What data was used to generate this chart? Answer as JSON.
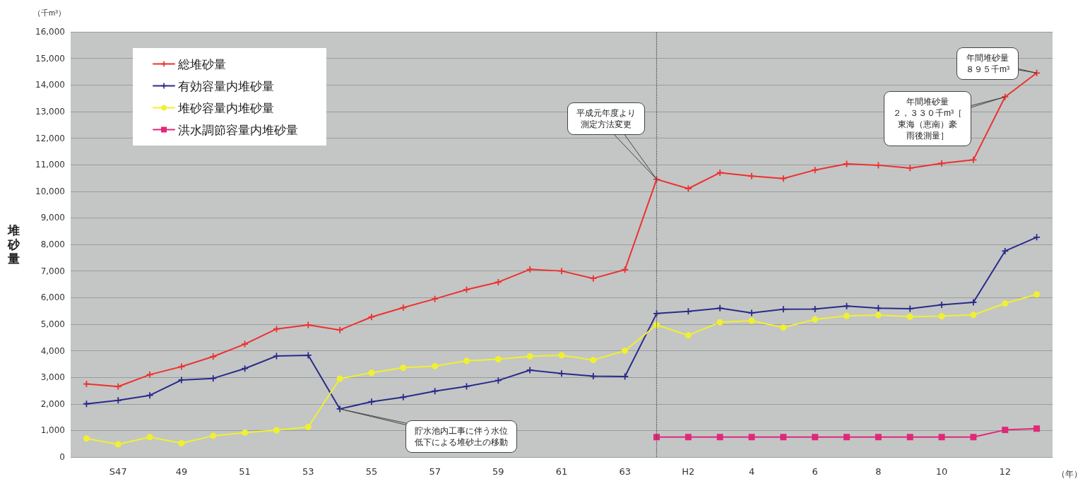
{
  "chart_data": {
    "type": "line",
    "ylabel": "堆砂量",
    "xlabel": "（年）",
    "categories": [
      null,
      "S47",
      null,
      "49",
      null,
      "51",
      null,
      "53",
      null,
      "55",
      null,
      "57",
      null,
      "59",
      null,
      "61",
      null,
      "63",
      null,
      "H2",
      null,
      "4",
      null,
      "6",
      null,
      "8",
      null,
      "10",
      null,
      "12",
      null
    ],
    "series": [
      {
        "name": "総堆砂量",
        "color": "#ee3030",
        "marker": "cross",
        "values": [
          2750,
          2650,
          3100,
          3400,
          3780,
          4250,
          4820,
          4970,
          4780,
          5270,
          5620,
          5950,
          6300,
          6580,
          7060,
          7000,
          6720,
          7050,
          10450,
          10100,
          10700,
          10570,
          10480,
          10800,
          11030,
          10980,
          10870,
          11050,
          11180,
          13550,
          14450
        ]
      },
      {
        "name": "有効容量内堆砂量",
        "color": "#2a2a8a",
        "marker": "cross",
        "values": [
          2000,
          2130,
          2320,
          2900,
          2960,
          3330,
          3800,
          3830,
          1810,
          2080,
          2250,
          2480,
          2660,
          2880,
          3270,
          3140,
          3040,
          3030,
          5400,
          5480,
          5600,
          5420,
          5560,
          5570,
          5680,
          5600,
          5580,
          5730,
          5820,
          7750,
          8270
        ]
      },
      {
        "name": "堆砂容量内堆砂量",
        "color": "#f0f030",
        "marker": "circle",
        "values": [
          700,
          480,
          750,
          520,
          800,
          920,
          1010,
          1130,
          2950,
          3170,
          3360,
          3420,
          3620,
          3680,
          3790,
          3830,
          3650,
          4000,
          4970,
          4580,
          5070,
          5130,
          4870,
          5180,
          5310,
          5340,
          5280,
          5300,
          5350,
          5780,
          6120
        ]
      },
      {
        "name": "洪水調節容量内堆砂量",
        "color": "#e0287a",
        "marker": "square",
        "values": [
          null,
          null,
          null,
          null,
          null,
          null,
          null,
          null,
          null,
          null,
          null,
          null,
          null,
          null,
          null,
          null,
          null,
          null,
          750,
          750,
          750,
          750,
          750,
          750,
          750,
          750,
          750,
          750,
          750,
          1020,
          1070
        ]
      }
    ],
    "ylim": [
      0,
      16000
    ],
    "yticks": [
      0,
      {
        "value": 1000,
        "label": "1,000"
      },
      {
        "value": 2000,
        "label": "2,000"
      },
      {
        "value": 3000,
        "label": "3,000"
      },
      {
        "value": 4000,
        "label": "4,000"
      },
      {
        "value": 5000,
        "label": "5,000"
      },
      {
        "value": 6000,
        "label": "6,000"
      },
      {
        "value": 7000,
        "label": "7,000"
      },
      {
        "value": 8000,
        "label": "8,000"
      },
      {
        "value": 9000,
        "label": "9,000"
      },
      {
        "value": 10000,
        "label": "10,000"
      },
      {
        "value": 11000,
        "label": "11,000"
      },
      {
        "value": 12000,
        "label": "12,000"
      },
      {
        "value": 13000,
        "label": "13,000"
      },
      {
        "value": 14000,
        "label": "14,000"
      },
      {
        "value": 15000,
        "label": "15,000"
      },
      {
        "value": 16000,
        "label": "16,000"
      }
    ],
    "annotations": [
      "（千m³）",
      "平成元年度より測定方法変更",
      "貯水池内工事に伴う水位低下による堆砂土の移動",
      "年間堆砂量２，３３０千m³［東海（恵南）豪雨後測量］",
      "年間堆砂量８９５千m³"
    ],
    "grid": "y",
    "legend": "top left",
    "line_style": "solid"
  }
}
